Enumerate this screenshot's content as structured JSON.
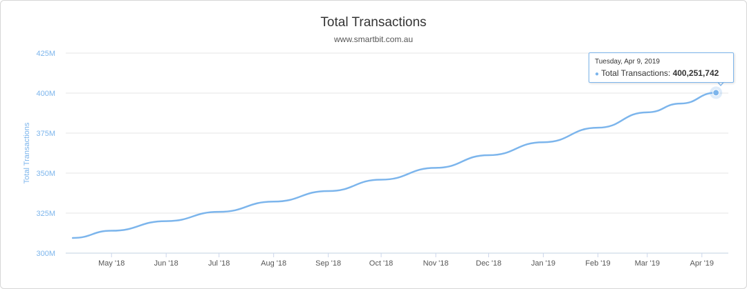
{
  "chart_data": {
    "type": "line",
    "title": "Total Transactions",
    "subtitle": "www.smartbit.com.au",
    "xlabel": "",
    "ylabel": "Total Transactions",
    "ylim": [
      300,
      425
    ],
    "y_ticks": [
      {
        "value": 300,
        "label": "300M"
      },
      {
        "value": 325,
        "label": "325M"
      },
      {
        "value": 350,
        "label": "350M"
      },
      {
        "value": 375,
        "label": "375M"
      },
      {
        "value": 400,
        "label": "400M"
      },
      {
        "value": 425,
        "label": "425M"
      }
    ],
    "x_range": [
      "2018-04-05",
      "2019-04-16"
    ],
    "x_ticks": [
      {
        "date": "2018-05-01",
        "label": "May '18"
      },
      {
        "date": "2018-06-01",
        "label": "Jun '18"
      },
      {
        "date": "2018-07-01",
        "label": "Jul '18"
      },
      {
        "date": "2018-08-01",
        "label": "Aug '18"
      },
      {
        "date": "2018-09-01",
        "label": "Sep '18"
      },
      {
        "date": "2018-10-01",
        "label": "Oct '18"
      },
      {
        "date": "2018-11-01",
        "label": "Nov '18"
      },
      {
        "date": "2018-12-01",
        "label": "Dec '18"
      },
      {
        "date": "2019-01-01",
        "label": "Jan '19"
      },
      {
        "date": "2019-02-01",
        "label": "Feb '19"
      },
      {
        "date": "2019-03-01",
        "label": "Mar '19"
      },
      {
        "date": "2019-04-01",
        "label": "Apr '19"
      }
    ],
    "grid": true,
    "series": [
      {
        "name": "Total Transactions",
        "color": "#7cb5ec",
        "unit": "millions",
        "points": [
          {
            "x": "2018-04-09",
            "y": 309.5
          },
          {
            "x": "2018-05-01",
            "y": 314.0
          },
          {
            "x": "2018-06-01",
            "y": 320.0
          },
          {
            "x": "2018-07-01",
            "y": 325.8
          },
          {
            "x": "2018-08-01",
            "y": 332.2
          },
          {
            "x": "2018-09-01",
            "y": 338.8
          },
          {
            "x": "2018-10-01",
            "y": 345.9
          },
          {
            "x": "2018-11-01",
            "y": 353.3
          },
          {
            "x": "2018-12-01",
            "y": 361.2
          },
          {
            "x": "2019-01-01",
            "y": 369.3
          },
          {
            "x": "2019-02-01",
            "y": 378.4
          },
          {
            "x": "2019-03-01",
            "y": 388.0
          },
          {
            "x": "2019-03-20",
            "y": 393.5
          },
          {
            "x": "2019-04-09",
            "y": 400.251742
          }
        ]
      }
    ],
    "tooltip": {
      "date": "Tuesday, Apr 9, 2019",
      "series_label": "Total Transactions:",
      "value": "400,251,742",
      "bullet": "●"
    }
  }
}
